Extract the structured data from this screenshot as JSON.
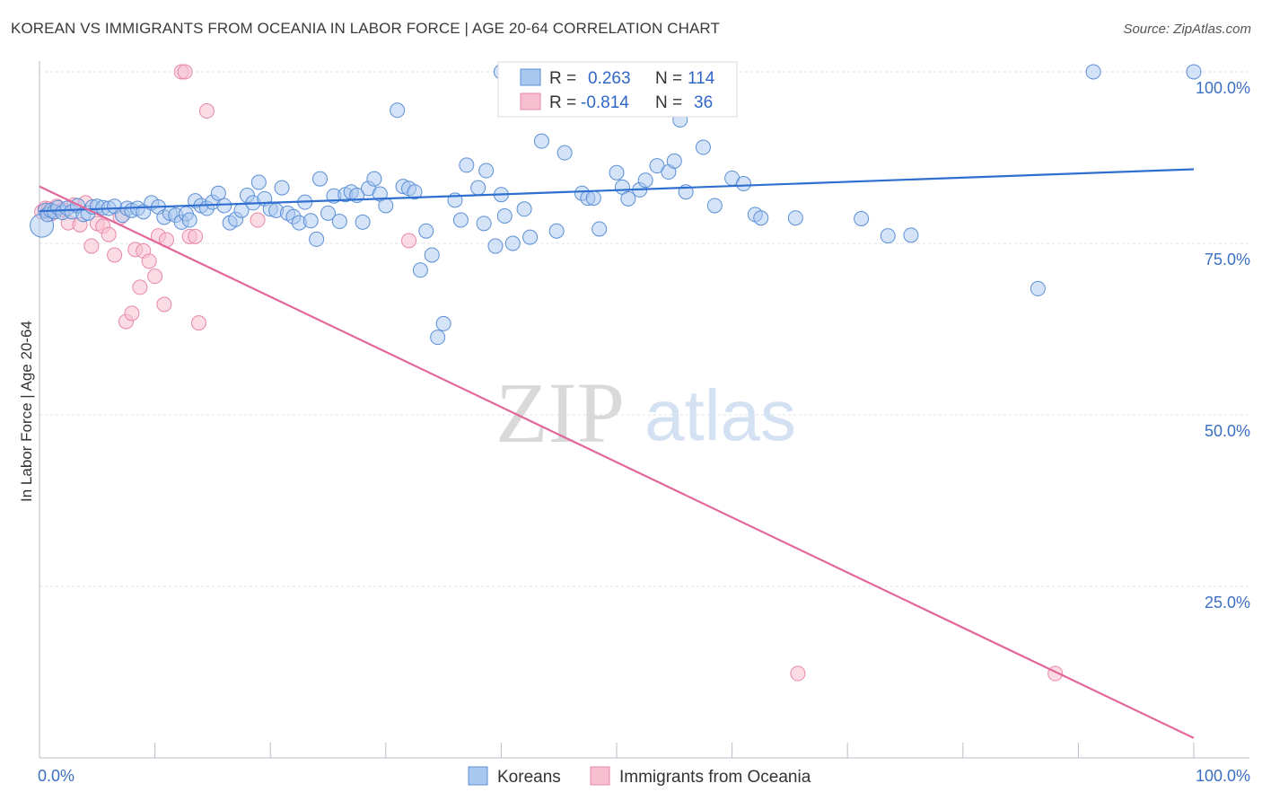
{
  "header": {
    "title": "KOREAN VS IMMIGRANTS FROM OCEANIA IN LABOR FORCE | AGE 20-64 CORRELATION CHART",
    "source": "Source: ZipAtlas.com"
  },
  "watermark": {
    "zip": "ZIP",
    "atlas": "atlas"
  },
  "colors": {
    "koreans_fill": "#a9c8f0",
    "koreans_stroke": "#5b8fd6",
    "koreans_line": "#2f6fcf",
    "oceania_fill": "#f7bfd0",
    "oceania_stroke": "#e887a7",
    "oceania_line": "#e2679a",
    "grid": "#dde1e8",
    "tick_text": "#3a6fc4"
  },
  "stats_legend": {
    "row1": {
      "r_label": "R =",
      "r_value": "0.263",
      "n_label": "N =",
      "n_value": "114"
    },
    "row2": {
      "r_label": "R =",
      "r_value": "-0.814",
      "n_label": "N =",
      "n_value": "36"
    }
  },
  "chart_data": {
    "type": "scatter",
    "title": "KOREAN VS IMMIGRANTS FROM OCEANIA IN LABOR FORCE | AGE 20-64 CORRELATION CHART",
    "xlabel": "",
    "ylabel": "In Labor Force | Age 20-64",
    "xlim": [
      0,
      100
    ],
    "ylim": [
      0,
      100
    ],
    "x_tick_labels": [
      {
        "value": 0,
        "label": "0.0%"
      },
      {
        "value": 100,
        "label": "100.0%"
      }
    ],
    "y_tick_labels": [
      {
        "value": 100,
        "label": "100.0%"
      },
      {
        "value": 75,
        "label": "75.0%"
      },
      {
        "value": 50,
        "label": "50.0%"
      },
      {
        "value": 25,
        "label": "25.0%"
      }
    ],
    "grid": true,
    "legend_position": "bottom-center",
    "series": [
      {
        "name": "Koreans",
        "r": 0.263,
        "n": 114,
        "trend": {
          "x": [
            0,
            100
          ],
          "y": [
            79.7,
            85.8
          ]
        },
        "points": [
          [
            0.2,
            77.6
          ],
          [
            0.5,
            79.8
          ],
          [
            0.7,
            79.2
          ],
          [
            1.0,
            79.8
          ],
          [
            1.3,
            79.6
          ],
          [
            1.6,
            80.2
          ],
          [
            2.0,
            79.5
          ],
          [
            2.4,
            80.1
          ],
          [
            2.8,
            79.6
          ],
          [
            3.3,
            80.5
          ],
          [
            3.8,
            79.2
          ],
          [
            4.2,
            79.4
          ],
          [
            4.6,
            80.3
          ],
          [
            5.0,
            80.4
          ],
          [
            5.5,
            80.2
          ],
          [
            6.0,
            80.1
          ],
          [
            6.5,
            80.4
          ],
          [
            7.2,
            79.1
          ],
          [
            7.6,
            80.1
          ],
          [
            8.0,
            79.8
          ],
          [
            8.5,
            80.1
          ],
          [
            9.0,
            79.6
          ],
          [
            9.7,
            80.9
          ],
          [
            10.3,
            80.3
          ],
          [
            10.8,
            78.8
          ],
          [
            11.3,
            79.4
          ],
          [
            11.8,
            79.1
          ],
          [
            12.3,
            78.1
          ],
          [
            12.7,
            79.3
          ],
          [
            13.0,
            78.4
          ],
          [
            13.5,
            81.2
          ],
          [
            14.0,
            80.5
          ],
          [
            14.5,
            80.1
          ],
          [
            15.0,
            81.0
          ],
          [
            15.5,
            82.3
          ],
          [
            16.0,
            80.5
          ],
          [
            16.5,
            78.0
          ],
          [
            17.0,
            78.5
          ],
          [
            17.5,
            79.8
          ],
          [
            18.0,
            82.0
          ],
          [
            18.5,
            80.9
          ],
          [
            19.0,
            83.9
          ],
          [
            19.5,
            81.5
          ],
          [
            20.0,
            80.0
          ],
          [
            20.5,
            79.8
          ],
          [
            21.0,
            83.1
          ],
          [
            21.5,
            79.4
          ],
          [
            22.0,
            78.9
          ],
          [
            22.5,
            78.0
          ],
          [
            23.0,
            81.0
          ],
          [
            23.5,
            78.3
          ],
          [
            24.0,
            75.6
          ],
          [
            24.3,
            84.4
          ],
          [
            25.0,
            79.4
          ],
          [
            25.5,
            81.9
          ],
          [
            26.0,
            78.2
          ],
          [
            26.5,
            82.1
          ],
          [
            27.0,
            82.5
          ],
          [
            27.5,
            82.0
          ],
          [
            28.0,
            78.1
          ],
          [
            28.5,
            83.0
          ],
          [
            29.0,
            84.4
          ],
          [
            29.5,
            82.2
          ],
          [
            30.0,
            80.5
          ],
          [
            31.0,
            94.4
          ],
          [
            31.5,
            83.3
          ],
          [
            32.0,
            83.0
          ],
          [
            32.5,
            82.5
          ],
          [
            33.0,
            71.1
          ],
          [
            33.5,
            76.8
          ],
          [
            34.0,
            73.3
          ],
          [
            34.5,
            61.3
          ],
          [
            35.0,
            63.3
          ],
          [
            36.0,
            81.3
          ],
          [
            36.5,
            78.4
          ],
          [
            37.0,
            86.4
          ],
          [
            38.0,
            83.1
          ],
          [
            38.5,
            77.9
          ],
          [
            38.7,
            85.6
          ],
          [
            39.5,
            74.6
          ],
          [
            40.0,
            82.1
          ],
          [
            40.3,
            79.0
          ],
          [
            41.0,
            75.0
          ],
          [
            42.0,
            80.0
          ],
          [
            42.5,
            75.9
          ],
          [
            43.5,
            89.9
          ],
          [
            44.8,
            76.8
          ],
          [
            45.5,
            88.2
          ],
          [
            47.0,
            82.3
          ],
          [
            47.5,
            81.6
          ],
          [
            48.0,
            81.6
          ],
          [
            48.5,
            77.1
          ],
          [
            50.0,
            85.3
          ],
          [
            50.5,
            83.2
          ],
          [
            51.0,
            81.5
          ],
          [
            52.0,
            82.8
          ],
          [
            52.5,
            84.2
          ],
          [
            53.5,
            86.3
          ],
          [
            54.5,
            85.4
          ],
          [
            55.0,
            87.0
          ],
          [
            55.5,
            93.0
          ],
          [
            56.0,
            82.5
          ],
          [
            57.5,
            89.0
          ],
          [
            58.5,
            80.5
          ],
          [
            60.0,
            84.5
          ],
          [
            61.0,
            83.7
          ],
          [
            62.0,
            79.2
          ],
          [
            62.5,
            78.7
          ],
          [
            65.5,
            78.7
          ],
          [
            71.2,
            78.6
          ],
          [
            73.5,
            76.1
          ],
          [
            75.5,
            76.2
          ],
          [
            86.5,
            68.4
          ],
          [
            91.3,
            100.0
          ],
          [
            100.0,
            100.0
          ],
          [
            40.0,
            100.0
          ]
        ]
      },
      {
        "name": "Immigrants from Oceania",
        "r": -0.814,
        "n": 36,
        "trend": {
          "x": [
            0,
            100
          ],
          "y": [
            83.3,
            2.9
          ]
        },
        "points": [
          [
            0.2,
            79.6
          ],
          [
            0.5,
            80.1
          ],
          [
            1.0,
            79.3
          ],
          [
            1.5,
            80.4
          ],
          [
            2.0,
            79.9
          ],
          [
            2.5,
            78.0
          ],
          [
            3.0,
            80.6
          ],
          [
            3.5,
            77.7
          ],
          [
            4.0,
            80.9
          ],
          [
            4.5,
            74.6
          ],
          [
            5.0,
            77.9
          ],
          [
            5.5,
            77.5
          ],
          [
            6.0,
            76.3
          ],
          [
            6.5,
            73.3
          ],
          [
            7.0,
            78.8
          ],
          [
            7.5,
            63.6
          ],
          [
            8.0,
            64.8
          ],
          [
            8.3,
            74.1
          ],
          [
            8.7,
            68.6
          ],
          [
            9.0,
            73.9
          ],
          [
            9.5,
            72.4
          ],
          [
            10.0,
            70.2
          ],
          [
            10.3,
            76.1
          ],
          [
            10.8,
            66.1
          ],
          [
            11.0,
            75.5
          ],
          [
            12.3,
            100.0
          ],
          [
            12.6,
            100.0
          ],
          [
            13.0,
            76.0
          ],
          [
            13.5,
            76.0
          ],
          [
            13.8,
            63.4
          ],
          [
            14.5,
            94.3
          ],
          [
            18.9,
            78.4
          ],
          [
            32.0,
            75.4
          ],
          [
            65.7,
            12.3
          ],
          [
            88.0,
            12.3
          ],
          [
            0.8,
            80.0
          ]
        ]
      }
    ]
  },
  "legend": {
    "items": [
      {
        "label": "Koreans"
      },
      {
        "label": "Immigrants from Oceania"
      }
    ]
  }
}
